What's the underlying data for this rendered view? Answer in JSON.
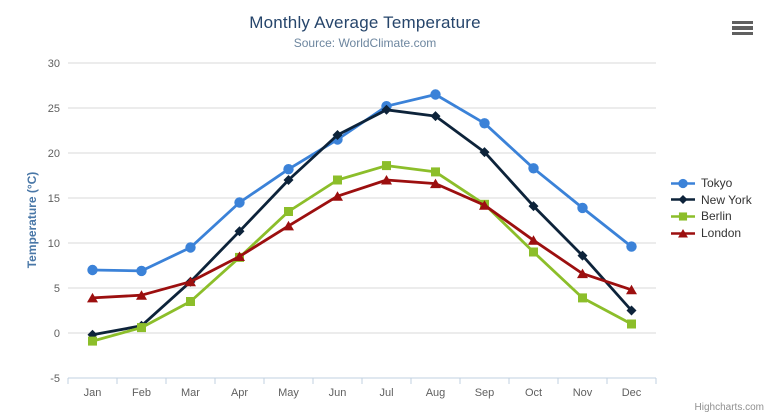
{
  "header": {
    "title": "Monthly Average Temperature",
    "subtitle": "Source: WorldClimate.com"
  },
  "credits": {
    "label": "Highcharts.com"
  },
  "menu": {
    "icon": "hamburger-menu-icon"
  },
  "colors": {
    "title_text": "#26456b",
    "subtitle_text": "#6d869f",
    "axis_title_text": "#4977a7",
    "axis_label_text": "#606060",
    "legend_text": "#333333",
    "credits_text": "#909090",
    "menu_icon": "#606060",
    "gridline": "#d8d8d8",
    "axis_line": "#c0d0e0",
    "background": "#ffffff"
  },
  "chart_data": {
    "type": "line",
    "title": "Monthly Average Temperature",
    "subtitle": "Source: WorldClimate.com",
    "xlabel": "",
    "ylabel": "Temperature (°C)",
    "ylim": [
      -5,
      30
    ],
    "ytick_step": 5,
    "ytick_labels": [
      "-5",
      "0",
      "5",
      "10",
      "15",
      "20",
      "25",
      "30"
    ],
    "grid": true,
    "legend_position": "right",
    "categories": [
      "Jan",
      "Feb",
      "Mar",
      "Apr",
      "May",
      "Jun",
      "Jul",
      "Aug",
      "Sep",
      "Oct",
      "Nov",
      "Dec"
    ],
    "series": [
      {
        "name": "Tokyo",
        "color": "#3b82d8",
        "marker": "circle",
        "values": [
          7.0,
          6.9,
          9.5,
          14.5,
          18.2,
          21.5,
          25.2,
          26.5,
          23.3,
          18.3,
          13.9,
          9.6
        ]
      },
      {
        "name": "New York",
        "color": "#0d233a",
        "marker": "diamond",
        "values": [
          -0.2,
          0.8,
          5.7,
          11.3,
          17.0,
          22.0,
          24.8,
          24.1,
          20.1,
          14.1,
          8.6,
          2.5
        ]
      },
      {
        "name": "Berlin",
        "color": "#8cbe2a",
        "marker": "square",
        "values": [
          -0.9,
          0.6,
          3.5,
          8.4,
          13.5,
          17.0,
          18.6,
          17.9,
          14.3,
          9.0,
          3.9,
          1.0
        ]
      },
      {
        "name": "London",
        "color": "#9c0f0f",
        "marker": "triangle",
        "values": [
          3.9,
          4.2,
          5.7,
          8.5,
          11.9,
          15.2,
          17.0,
          16.6,
          14.2,
          10.3,
          6.6,
          4.8
        ]
      }
    ]
  }
}
